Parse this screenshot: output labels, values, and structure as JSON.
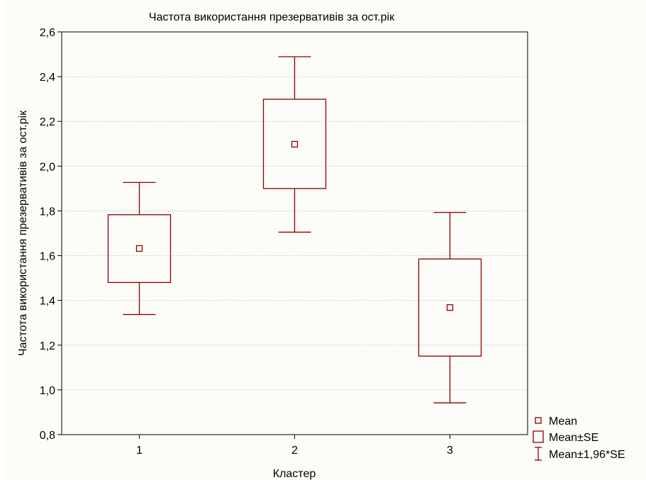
{
  "chart_data": {
    "type": "box",
    "title": "Частота використання презервативів за ост.рік",
    "xlabel": "Кластер",
    "ylabel": "Частота використання презервативів за ост.рік",
    "categories": [
      "1",
      "2",
      "3"
    ],
    "ylim": [
      0.8,
      2.6
    ],
    "yticks": [
      0.8,
      1.0,
      1.2,
      1.4,
      1.6,
      1.8,
      2.0,
      2.2,
      2.4,
      2.6
    ],
    "ytick_labels": [
      "0,8",
      "1,0",
      "1,2",
      "1,4",
      "1,6",
      "1,8",
      "2,0",
      "2,2",
      "2,4",
      "2,6"
    ],
    "grid": true,
    "legend_position": "bottom-right",
    "color": "#8b0000",
    "series": [
      {
        "name": "Mean",
        "values": [
          1.632,
          2.098,
          1.368
        ]
      },
      {
        "name": "Mean±SE",
        "low": [
          1.48,
          1.9,
          1.151
        ],
        "high": [
          1.783,
          2.299,
          1.585
        ]
      },
      {
        "name": "Mean±1,96*SE",
        "low": [
          1.337,
          1.705,
          0.942
        ],
        "high": [
          1.927,
          2.489,
          1.793
        ]
      }
    ]
  }
}
